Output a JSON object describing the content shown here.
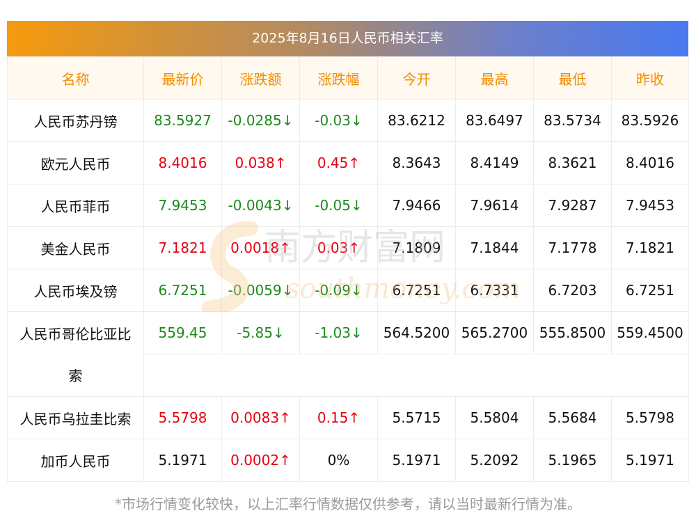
{
  "title": "2025年8月16日人民币相关汇率",
  "headers": [
    "名称",
    "最新价",
    "涨跌额",
    "涨跌幅",
    "今开",
    "最高",
    "最低",
    "昨收"
  ],
  "rows": [
    {
      "name": "人民币苏丹镑",
      "latest": "83.5927",
      "change": "-0.0285↓",
      "pct": "-0.03↓",
      "open": "83.6212",
      "high": "83.6497",
      "low": "83.5734",
      "prev": "83.5926",
      "trend": "down"
    },
    {
      "name": "欧元人民币",
      "latest": "8.4016",
      "change": "0.038↑",
      "pct": "0.45↑",
      "open": "8.3643",
      "high": "8.4149",
      "low": "8.3621",
      "prev": "8.4016",
      "trend": "up"
    },
    {
      "name": "人民币菲币",
      "latest": "7.9453",
      "change": "-0.0043↓",
      "pct": "-0.05↓",
      "open": "7.9466",
      "high": "7.9614",
      "low": "7.9287",
      "prev": "7.9453",
      "trend": "down"
    },
    {
      "name": "美金人民币",
      "latest": "7.1821",
      "change": "0.0018↑",
      "pct": "0.03↑",
      "open": "7.1809",
      "high": "7.1844",
      "low": "7.1778",
      "prev": "7.1821",
      "trend": "up"
    },
    {
      "name": "人民币埃及镑",
      "latest": "6.7251",
      "change": "-0.0059↓",
      "pct": "-0.09↓",
      "open": "6.7251",
      "high": "6.7331",
      "low": "6.7203",
      "prev": "6.7251",
      "trend": "down"
    },
    {
      "name_line1": "人民币哥伦比亚比",
      "name_line2": "索",
      "latest": "559.45",
      "change": "-5.85↓",
      "pct": "-1.03↓",
      "open": "564.5200",
      "high": "565.2700",
      "low": "555.8500",
      "prev": "559.4500",
      "trend": "down"
    },
    {
      "name": "人民币乌拉圭比索",
      "latest": "5.5798",
      "change": "0.0083↑",
      "pct": "0.15↑",
      "open": "5.5715",
      "high": "5.5804",
      "low": "5.5684",
      "prev": "5.5798",
      "trend": "up"
    },
    {
      "name": "加币人民币",
      "latest": "5.1971",
      "change": "0.0002↑",
      "pct": "0%",
      "open": "5.1971",
      "high": "5.2092",
      "low": "5.1965",
      "prev": "5.1971",
      "trend": "mixed"
    }
  ],
  "footer": "*市场行情变化较快，以上汇率行情数据仅供参考，请以当时最新行情为准。",
  "watermark": {
    "cn": "南方财富网",
    "en": "southmoney.com"
  },
  "colors": {
    "header_text": "#f08c00",
    "up": "#e60012",
    "down": "#1a8a1a",
    "gradient_start": "#f59a0c",
    "gradient_end": "#4a7af0"
  }
}
